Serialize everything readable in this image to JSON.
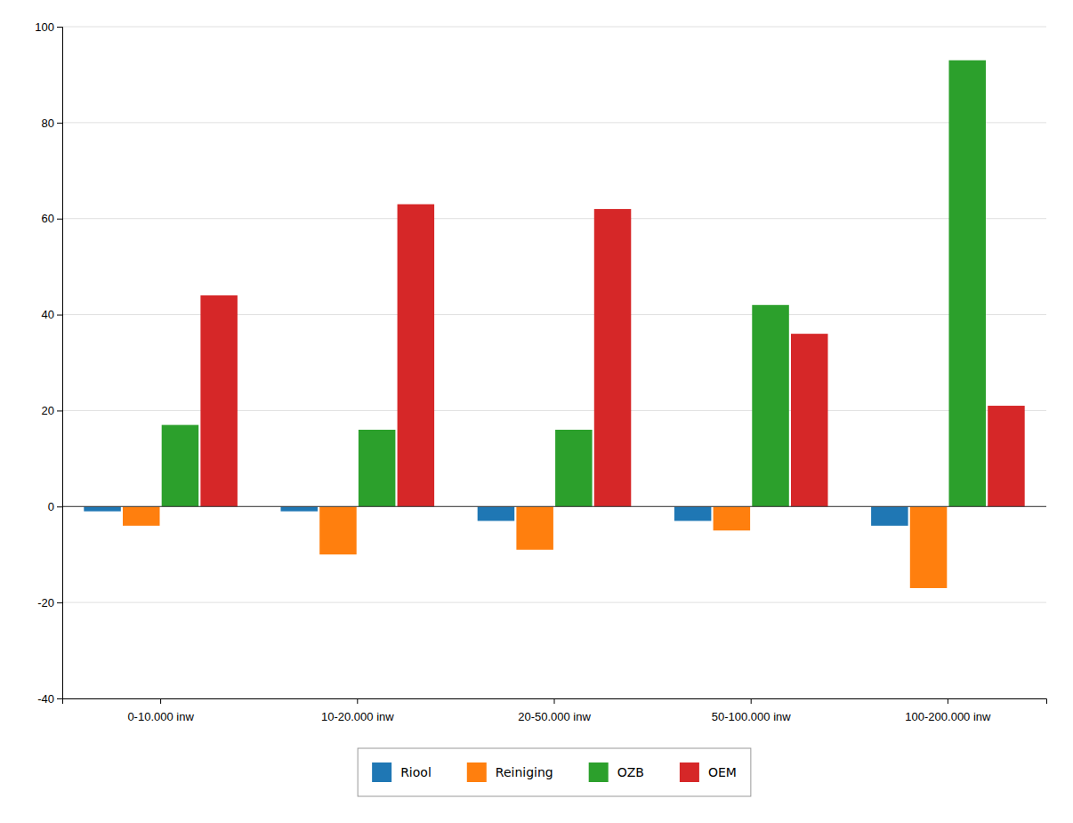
{
  "chart_data": {
    "type": "bar",
    "categories": [
      "0-10.000 inw",
      "10-20.000 inw",
      "20-50.000 inw",
      "50-100.000 inw",
      "100-200.000 inw"
    ],
    "series": [
      {
        "name": "Riool",
        "values": [
          -1,
          -1,
          -3,
          -3,
          -4
        ]
      },
      {
        "name": "Reiniging",
        "values": [
          -4,
          -10,
          -9,
          -5,
          -17
        ]
      },
      {
        "name": "OZB",
        "values": [
          17,
          16,
          16,
          42,
          93
        ]
      },
      {
        "name": "OEM",
        "values": [
          44,
          63,
          62,
          36,
          21
        ]
      }
    ],
    "ylim": [
      -40,
      100
    ],
    "yticks": [
      -40,
      -20,
      0,
      20,
      40,
      60,
      80,
      100
    ],
    "grid": true,
    "legend": "bottom"
  }
}
